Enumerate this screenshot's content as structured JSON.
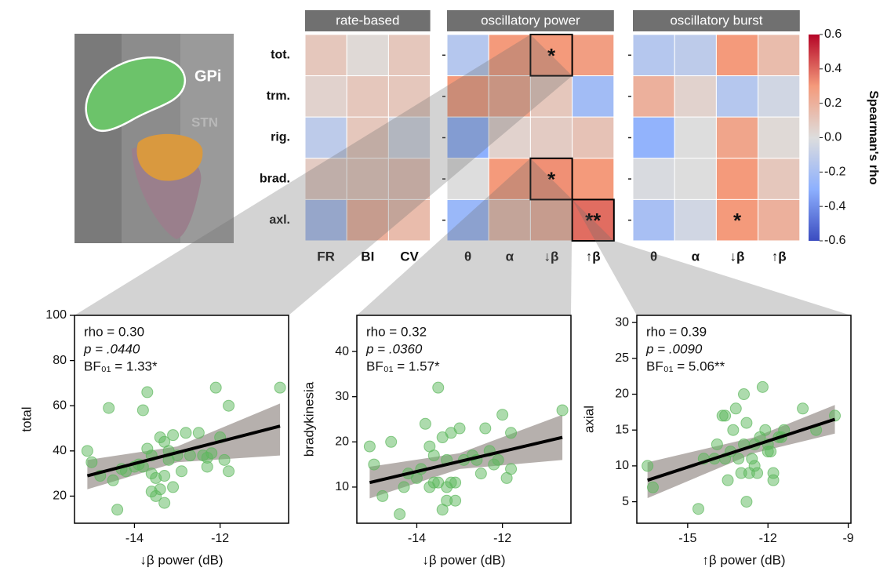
{
  "brain_image": {
    "labels": [
      "GPi",
      "STN"
    ]
  },
  "chart_data": [
    {
      "type": "heatmap",
      "row_labels": [
        "tot.",
        "trm.",
        "rig.",
        "brad.",
        "axl."
      ],
      "panels": [
        {
          "title": "rate-based",
          "columns": [
            "FR",
            "BI",
            "CV"
          ],
          "values": [
            [
              0.1,
              0.02,
              0.1
            ],
            [
              0.05,
              0.1,
              0.1
            ],
            [
              -0.12,
              0.1,
              -0.05
            ],
            [
              0.08,
              0.1,
              0.12
            ],
            [
              -0.2,
              0.2,
              0.15
            ]
          ]
        },
        {
          "title": "oscillatory power",
          "columns": [
            "θ",
            "α",
            "↓β",
            "↑β"
          ],
          "values": [
            [
              -0.15,
              0.3,
              0.3,
              0.28
            ],
            [
              0.3,
              0.25,
              0.1,
              -0.22
            ],
            [
              -0.3,
              0.05,
              0.08,
              0.12
            ],
            [
              0.0,
              0.3,
              0.32,
              0.3
            ],
            [
              -0.25,
              0.15,
              0.2,
              0.39
            ]
          ],
          "annotations": [
            [
              null,
              null,
              "*",
              null
            ],
            [
              null,
              null,
              null,
              null
            ],
            [
              null,
              null,
              null,
              null
            ],
            [
              null,
              null,
              "*",
              null
            ],
            [
              null,
              null,
              null,
              "**"
            ]
          ],
          "outlined": [
            [
              false,
              false,
              true,
              false
            ],
            [
              false,
              false,
              false,
              false
            ],
            [
              false,
              false,
              false,
              false
            ],
            [
              false,
              false,
              true,
              false
            ],
            [
              false,
              false,
              false,
              true
            ]
          ]
        },
        {
          "title": "oscillatory burst",
          "columns": [
            "θ",
            "α",
            "↓β",
            "↑β"
          ],
          "values": [
            [
              -0.15,
              -0.12,
              0.3,
              0.15
            ],
            [
              0.2,
              0.05,
              -0.15,
              -0.05
            ],
            [
              -0.28,
              0.0,
              0.25,
              0.02
            ],
            [
              -0.02,
              0.0,
              0.3,
              0.1
            ],
            [
              -0.2,
              -0.05,
              0.3,
              0.2
            ]
          ],
          "annotations": [
            [
              null,
              null,
              null,
              null
            ],
            [
              null,
              null,
              null,
              null
            ],
            [
              null,
              null,
              null,
              null
            ],
            [
              null,
              null,
              null,
              null
            ],
            [
              null,
              null,
              "*",
              null
            ]
          ]
        }
      ],
      "colorbar": {
        "label": "Spearman's rho",
        "lim": [
          -0.6,
          0.6
        ],
        "ticks": [
          0.6,
          0.4,
          0.2,
          {
            "value": 0,
            "label": "0.0"
          },
          -0.2,
          -0.4,
          -0.6
        ]
      }
    },
    {
      "type": "scatter",
      "x_label": "↓β power (dB)",
      "y_label": "total",
      "stats": [
        "rho = 0.30",
        "p = .0440",
        "BF₀₁ =  1.33*"
      ],
      "color": "#5cb85c",
      "x": [
        -15.1,
        -15.0,
        -14.8,
        -14.6,
        -14.5,
        -14.4,
        -14.3,
        -14.2,
        -14.0,
        -13.9,
        -13.8,
        -13.7,
        -13.7,
        -13.6,
        -13.6,
        -13.5,
        -13.5,
        -13.4,
        -13.4,
        -13.3,
        -13.3,
        -13.2,
        -13.2,
        -13.1,
        -13.1,
        -13.0,
        -12.9,
        -12.8,
        -12.7,
        -12.5,
        -12.3,
        -12.3,
        -12.2,
        -12.1,
        -12.0,
        -11.9,
        -11.8,
        -11.8,
        -10.6,
        -13.8,
        -13.3,
        -12.4,
        -13.6
      ],
      "y": [
        40,
        35,
        29,
        59,
        27,
        14,
        32,
        31,
        33,
        34,
        58,
        66,
        41,
        30,
        38,
        28,
        20,
        46,
        23,
        17,
        29,
        40,
        36,
        47,
        24,
        38,
        31,
        48,
        38,
        48,
        37,
        33,
        39,
        68,
        46,
        36,
        60,
        31,
        68,
        33,
        44,
        38,
        22
      ],
      "fit": {
        "x": [
          -15.1,
          -10.6
        ],
        "y": [
          29,
          51
        ],
        "color": "#000000"
      },
      "ci": {
        "x": [
          -15.1,
          -13.0,
          -10.6
        ],
        "lower": [
          23,
          35,
          38
        ],
        "upper": [
          36,
          42,
          61
        ],
        "color": "#9e9591"
      },
      "xlim": [
        -15.4,
        -10.4
      ],
      "ylim": [
        8,
        100
      ],
      "xticks": [
        -14,
        -12
      ],
      "yticks": [
        20,
        40,
        60,
        80,
        100
      ]
    },
    {
      "type": "scatter",
      "x_label": "↓β power (dB)",
      "y_label": "bradykinesia",
      "stats": [
        "rho = 0.32",
        "p = .0360",
        "BF₀₁ =  1.57*"
      ],
      "color": "#5cb85c",
      "x": [
        -15.1,
        -15.0,
        -14.8,
        -14.6,
        -14.4,
        -14.3,
        -14.2,
        -14.0,
        -13.9,
        -13.8,
        -13.7,
        -13.6,
        -13.6,
        -13.5,
        -13.5,
        -13.4,
        -13.4,
        -13.3,
        -13.3,
        -13.2,
        -13.2,
        -13.1,
        -13.1,
        -13.0,
        -12.9,
        -12.7,
        -12.5,
        -12.4,
        -12.3,
        -12.2,
        -12.1,
        -12.0,
        -11.9,
        -11.8,
        -11.8,
        -10.6,
        -13.7,
        -13.3,
        -12.6
      ],
      "y": [
        19,
        15,
        8,
        20,
        4,
        10,
        13,
        12,
        14,
        24,
        10,
        17,
        11,
        32,
        11,
        21,
        5,
        16,
        7,
        22,
        11,
        7,
        11,
        23,
        16,
        17,
        13,
        23,
        18,
        15,
        16,
        26,
        12,
        22,
        14,
        27,
        19,
        10,
        16
      ],
      "fit": {
        "x": [
          -15.1,
          -10.6
        ],
        "y": [
          11,
          21
        ],
        "color": "#000000"
      },
      "ci": {
        "x": [
          -15.1,
          -13.0,
          -10.6
        ],
        "lower": [
          7.5,
          14,
          16
        ],
        "upper": [
          14.5,
          17.5,
          26
        ],
        "color": "#9e9591"
      },
      "xlim": [
        -15.4,
        -10.4
      ],
      "ylim": [
        2,
        48
      ],
      "xticks": [
        -14,
        -12
      ],
      "yticks": [
        10,
        20,
        30,
        40
      ]
    },
    {
      "type": "scatter",
      "x_label": "↑β power (dB)",
      "y_label": "axial",
      "stats": [
        "rho = 0.39",
        "p = .0090",
        "BF₀₁ =  5.06**"
      ],
      "color": "#5cb85c",
      "x": [
        -16.5,
        -16.3,
        -14.6,
        -14.4,
        -14.0,
        -13.9,
        -13.7,
        -13.6,
        -13.5,
        -13.4,
        -13.3,
        -13.2,
        -13.1,
        -13.0,
        -12.9,
        -12.9,
        -12.8,
        -12.8,
        -12.7,
        -12.6,
        -12.5,
        -12.4,
        -12.3,
        -12.2,
        -12.1,
        -12.0,
        -12.0,
        -11.8,
        -11.8,
        -11.6,
        -11.4,
        -10.7,
        -10.2,
        -9.5,
        -13.6,
        -11.9,
        -12.5,
        -11.5
      ],
      "y": [
        10,
        7,
        4,
        11,
        11,
        13,
        17,
        11,
        8,
        12,
        15,
        18,
        11,
        9,
        20,
        13,
        16,
        5,
        9,
        11,
        13,
        9,
        14,
        21,
        15,
        12,
        13,
        9,
        8,
        14,
        15,
        18,
        15,
        17,
        17,
        12,
        10,
        14
      ],
      "fit": {
        "x": [
          -16.5,
          -9.5
        ],
        "y": [
          8,
          16.5
        ],
        "color": "#000000"
      },
      "ci": {
        "x": [
          -16.5,
          -12.5,
          -9.5
        ],
        "lower": [
          5.5,
          11.8,
          14.5
        ],
        "upper": [
          10.5,
          14,
          18.5
        ],
        "color": "#9e9591"
      },
      "xlim": [
        -16.9,
        -8.9
      ],
      "ylim": [
        2,
        31
      ],
      "xticks": [
        -15,
        -12,
        -9
      ],
      "yticks": [
        5,
        10,
        15,
        20,
        25,
        30
      ]
    }
  ]
}
